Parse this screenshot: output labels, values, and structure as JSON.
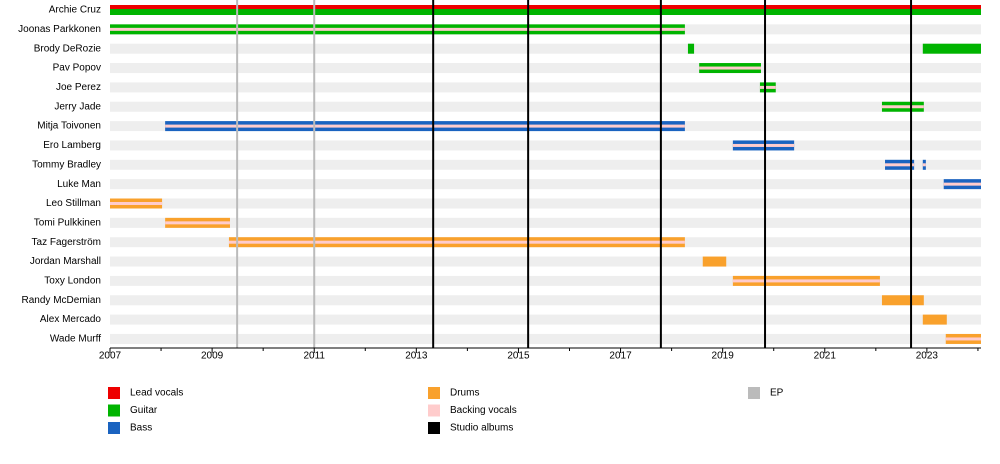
{
  "chart_data": {
    "type": "timeline",
    "categories": [
      "Archie Cruz",
      "Joonas Parkkonen",
      "Brody DeRozie",
      "Pav Popov",
      "Joe Perez",
      "Jerry Jade",
      "Mitja Toivonen",
      "Ero Lamberg",
      "Tommy Bradley",
      "Luke Man",
      "Leo Stillman",
      "Tomi Pulkkinen",
      "Taz Fagerström",
      "Jordan Marshall",
      "Toxy London",
      "Randy McDemian",
      "Alex Mercado",
      "Wade Murff"
    ],
    "xlim": [
      2007,
      2024.06
    ],
    "xticks": [
      2007,
      2009,
      2011,
      2013,
      2015,
      2017,
      2019,
      2021,
      2023
    ],
    "x_minor_ticks": [
      2008,
      2010,
      2012,
      2014,
      2016,
      2018,
      2020,
      2022,
      2024
    ],
    "series": [
      {
        "name": "Lead vocals",
        "color": "#ee0000",
        "bars": [
          {
            "member": "Archie Cruz",
            "start": 2007,
            "end": 2024.06
          }
        ]
      },
      {
        "name": "Guitar",
        "color": "#00b400",
        "bars": [
          {
            "member": "Archie Cruz",
            "start": 2007,
            "end": 2024.06
          },
          {
            "member": "Joonas Parkkonen",
            "start": 2007,
            "end": 2018.26
          },
          {
            "member": "Brody DeRozie",
            "start": 2018.32,
            "end": 2018.44
          },
          {
            "member": "Brody DeRozie",
            "start": 2022.92,
            "end": 2024.06
          },
          {
            "member": "Pav Popov",
            "start": 2018.54,
            "end": 2019.75
          },
          {
            "member": "Joe Perez",
            "start": 2019.73,
            "end": 2020.04
          },
          {
            "member": "Jerry Jade",
            "start": 2022.12,
            "end": 2022.94
          }
        ]
      },
      {
        "name": "Bass",
        "color": "#1a63c0",
        "bars": [
          {
            "member": "Mitja Toivonen",
            "start": 2008.08,
            "end": 2018.26
          },
          {
            "member": "Ero Lamberg",
            "start": 2019.2,
            "end": 2020.4
          },
          {
            "member": "Tommy Bradley",
            "start": 2022.18,
            "end": 2022.75
          },
          {
            "member": "Tommy Bradley",
            "start": 2022.92,
            "end": 2022.98
          },
          {
            "member": "Luke Man",
            "start": 2023.33,
            "end": 2024.06
          }
        ]
      },
      {
        "name": "Drums",
        "color": "#f9a12c",
        "bars": [
          {
            "member": "Leo Stillman",
            "start": 2007,
            "end": 2008.02
          },
          {
            "member": "Tomi Pulkkinen",
            "start": 2008.08,
            "end": 2009.35
          },
          {
            "member": "Taz Fagerström",
            "start": 2009.33,
            "end": 2018.26
          },
          {
            "member": "Jordan Marshall",
            "start": 2018.61,
            "end": 2019.07
          },
          {
            "member": "Toxy London",
            "start": 2019.2,
            "end": 2022.08
          },
          {
            "member": "Randy McDemian",
            "start": 2022.12,
            "end": 2022.94
          },
          {
            "member": "Alex Mercado",
            "start": 2022.92,
            "end": 2023.39
          },
          {
            "member": "Wade Murff",
            "start": 2023.37,
            "end": 2024.06
          }
        ]
      },
      {
        "name": "Backing vocals",
        "color": "#ffcccc",
        "bars": [
          {
            "member": "Joonas Parkkonen",
            "start": 2007,
            "end": 2018.26
          },
          {
            "member": "Pav Popov",
            "start": 2018.54,
            "end": 2019.75
          },
          {
            "member": "Joe Perez",
            "start": 2019.73,
            "end": 2020.04
          },
          {
            "member": "Jerry Jade",
            "start": 2022.12,
            "end": 2022.94
          },
          {
            "member": "Mitja Toivonen",
            "start": 2008.08,
            "end": 2018.26
          },
          {
            "member": "Ero Lamberg",
            "start": 2019.2,
            "end": 2020.4
          },
          {
            "member": "Tommy Bradley",
            "start": 2022.18,
            "end": 2022.75
          },
          {
            "member": "Tommy Bradley",
            "start": 2022.92,
            "end": 2022.98
          },
          {
            "member": "Luke Man",
            "start": 2023.33,
            "end": 2024.06
          },
          {
            "member": "Leo Stillman",
            "start": 2007,
            "end": 2008.02
          },
          {
            "member": "Tomi Pulkkinen",
            "start": 2008.08,
            "end": 2009.35
          },
          {
            "member": "Taz Fagerström",
            "start": 2009.33,
            "end": 2018.26
          },
          {
            "member": "Toxy London",
            "start": 2019.2,
            "end": 2022.08
          },
          {
            "member": "Wade Murff",
            "start": 2023.37,
            "end": 2024.06
          }
        ]
      },
      {
        "name": "Studio albums",
        "color": "#000000",
        "x": [
          2013.33,
          2015.19,
          2017.79,
          2019.83,
          2022.69
        ]
      },
      {
        "name": "EP",
        "color": "#bbbbbb",
        "x": [
          2009.49,
          2011.0
        ]
      }
    ]
  }
}
